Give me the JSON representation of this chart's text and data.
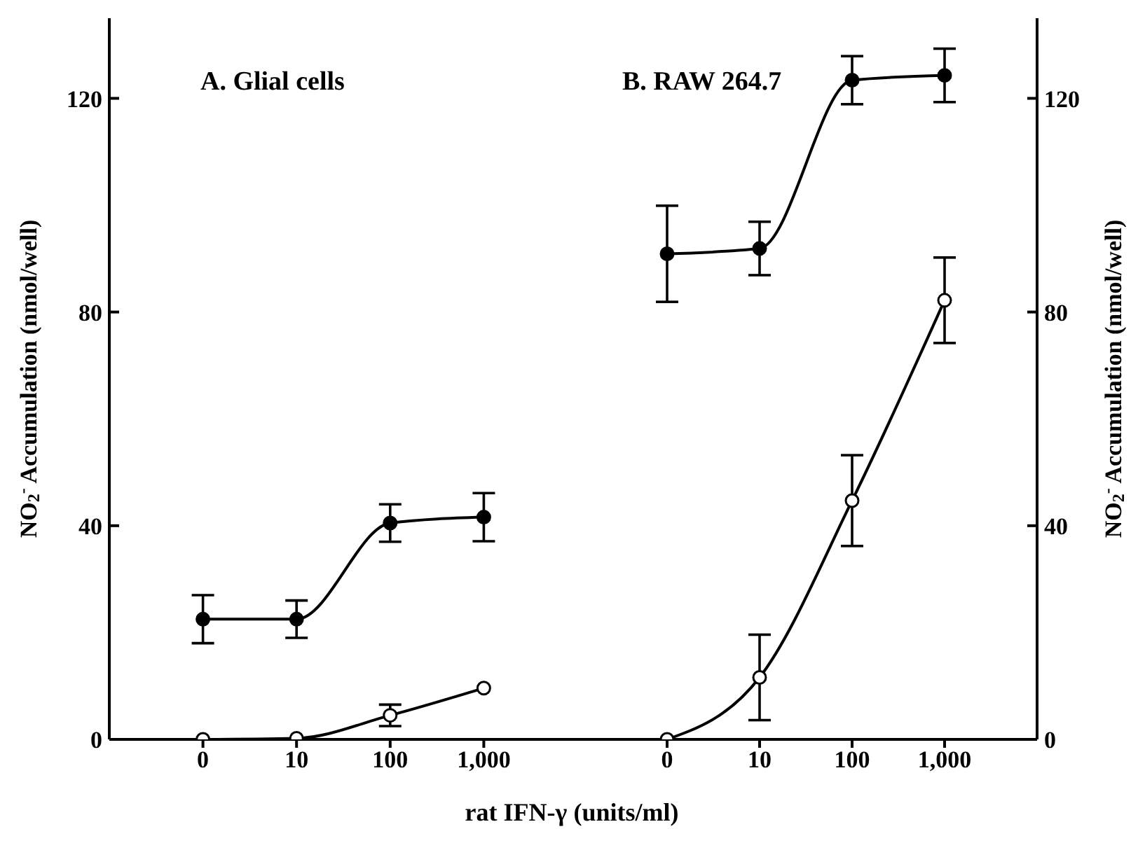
{
  "chart_data": [
    {
      "type": "line",
      "title": "A. Glial cells",
      "xlabel": "rat IFN-γ (units/ml)",
      "ylabel": "NO$_{2}$$^{-}$ Accumulation (nmol/well)",
      "categories": [
        "0",
        "10",
        "100",
        "1,000"
      ],
      "ylim": [
        0,
        135
      ],
      "yticks": [
        0,
        40,
        80,
        120
      ],
      "marker": "circle",
      "grid": false,
      "legend": false,
      "series": [
        {
          "color": "#000000",
          "values": [
            22.5,
            22.5,
            40.5,
            41.6
          ],
          "errors": [
            4.5,
            3.5,
            3.5,
            4.5
          ]
        },
        {
          "color": "#000000",
          "values": [
            0,
            0.2,
            4.5,
            9.6
          ],
          "errors": [
            null,
            null,
            2,
            null
          ]
        }
      ]
    },
    {
      "type": "line",
      "title": "B. RAW 264.7",
      "y2label": "NO$_{2}$$^{-}$ Accumulation (nmol/well)",
      "categories": [
        "0",
        "10",
        "100",
        "1,000"
      ],
      "y2lim": [
        0,
        135
      ],
      "y2ticks": [
        0,
        40,
        80,
        120
      ],
      "marker": "circle",
      "grid": false,
      "legend": false,
      "series": [
        {
          "axis": "y2",
          "color": "#000000",
          "values": [
            90.9,
            91.9,
            123.4,
            124.3
          ],
          "errors": [
            9,
            5,
            4.5,
            5
          ]
        },
        {
          "axis": "y2",
          "color": "#000000",
          "values": [
            0,
            11.6,
            44.7,
            82.2
          ],
          "errors": [
            null,
            8,
            8.5,
            8
          ]
        }
      ]
    }
  ]
}
